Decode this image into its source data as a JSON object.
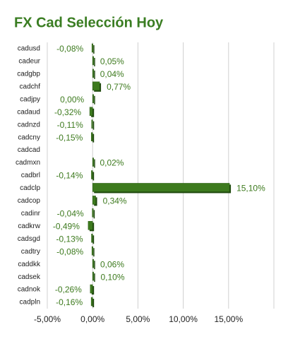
{
  "chart_data": {
    "type": "hbar",
    "title": "FX Cad Selección Hoy",
    "categories": [
      "cadusd",
      "cadeur",
      "cadgbp",
      "cadchf",
      "cadjpy",
      "cadaud",
      "cadnzd",
      "cadcny",
      "cadcad",
      "cadmxn",
      "cadbrl",
      "cadclp",
      "cadcop",
      "cadinr",
      "cadkrw",
      "cadsgd",
      "cadtry",
      "caddkk",
      "cadsek",
      "cadnok",
      "cadpln"
    ],
    "values": [
      -0.08,
      0.05,
      0.04,
      0.77,
      0.0,
      -0.32,
      -0.11,
      -0.15,
      null,
      0.02,
      -0.14,
      15.1,
      0.34,
      -0.04,
      -0.49,
      -0.13,
      -0.08,
      0.06,
      0.1,
      -0.26,
      -0.16
    ],
    "value_labels": [
      "-0,08%",
      "0,05%",
      "0,04%",
      "0,77%",
      "0,00%",
      "-0,32%",
      "-0,11%",
      "-0,15%",
      null,
      "0,02%",
      "-0,14%",
      "15,10%",
      "0,34%",
      "-0,04%",
      "-0,49%",
      "-0,13%",
      "-0,08%",
      "0,06%",
      "0,10%",
      "-0,26%",
      "-0,16%"
    ],
    "color": "#3d7a1e",
    "xlim": [
      -5,
      20
    ],
    "xticks": [
      {
        "value": -5,
        "label": "-5,00%"
      },
      {
        "value": 0,
        "label": "0,00%"
      },
      {
        "value": 5,
        "label": "5,00%"
      },
      {
        "value": 10,
        "label": "10,00%"
      },
      {
        "value": 15,
        "label": "15,00%"
      }
    ],
    "grid": true
  }
}
